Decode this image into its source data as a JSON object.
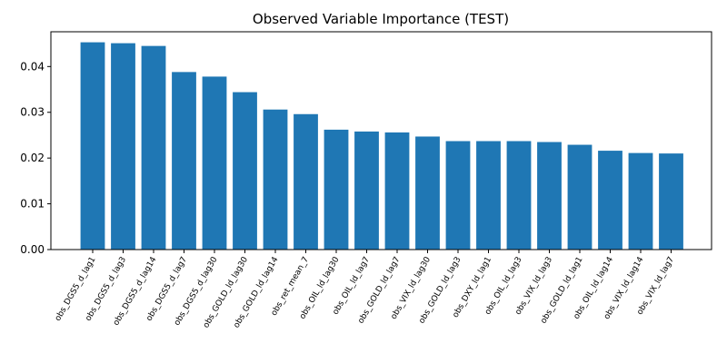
{
  "chart_data": {
    "type": "bar",
    "title": "Observed Variable Importance (TEST)",
    "xlabel": "",
    "ylabel": "",
    "bar_color": "#1f77b4",
    "ylim": [
      0,
      0.0476
    ],
    "yticks": [
      0.0,
      0.01,
      0.02,
      0.03,
      0.04
    ],
    "ytick_labels": [
      "0.00",
      "0.01",
      "0.02",
      "0.03",
      "0.04"
    ],
    "grid": false,
    "categories": [
      "obs_DGS5_d_lag1",
      "obs_DGS5_d_lag3",
      "obs_DGS5_d_lag14",
      "obs_DGS5_d_lag7",
      "obs_DGS5_d_lag30",
      "obs_GOLD_ld_lag30",
      "obs_GOLD_ld_lag14",
      "obs_ret_mean_7",
      "obs_OIL_ld_lag30",
      "obs_OIL_ld_lag7",
      "obs_GOLD_ld_lag7",
      "obs_VIX_ld_lag30",
      "obs_GOLD_ld_lag3",
      "obs_DXY_ld_lag1",
      "obs_OIL_ld_lag3",
      "obs_VIX_ld_lag3",
      "obs_GOLD_ld_lag1",
      "obs_OIL_ld_lag14",
      "obs_VIX_ld_lag14",
      "obs_VIX_ld_lag7"
    ],
    "values": [
      0.0453,
      0.0451,
      0.0445,
      0.0388,
      0.0378,
      0.0344,
      0.0306,
      0.0296,
      0.0262,
      0.0258,
      0.0256,
      0.0247,
      0.0237,
      0.0237,
      0.0237,
      0.0235,
      0.0229,
      0.0216,
      0.0211,
      0.021
    ]
  }
}
